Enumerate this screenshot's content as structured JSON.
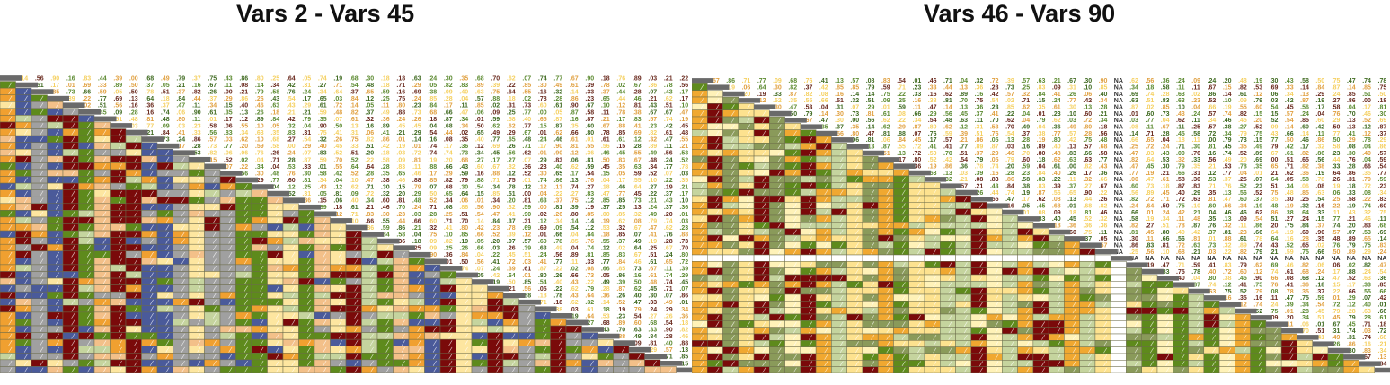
{
  "chart_data": [
    {
      "type": "heatmap",
      "title": "Vars 2 - Vars 45",
      "layout": "lower-triangle-colored-cells-upper-triangle-coefficients",
      "var_range": [
        2,
        45
      ],
      "n_vars": 44,
      "value_range": [
        -1,
        1
      ],
      "missing_label": "",
      "legend": "none",
      "grid": true,
      "cell_colors": [
        "#7a0a0a",
        "#f0a030",
        "#f3c089",
        "#fde6a0",
        "#a0a0a0",
        "#c5d49e",
        "#5e8a1c",
        "#4a5a9a"
      ],
      "number_colors": [
        "#e0a040",
        "#f5d060",
        "#5c8a30",
        "#3f6a20",
        "#6a2a1e"
      ],
      "seed": 7
    },
    {
      "type": "heatmap",
      "title": "Vars 46 - Vars 90",
      "layout": "lower-triangle-colored-cells-upper-triangle-coefficients",
      "var_range": [
        46,
        90
      ],
      "n_vars": 45,
      "value_range": [
        -1,
        1
      ],
      "missing_label": "NA",
      "missing_var_index": 27,
      "legend": "none",
      "grid": true,
      "cell_colors": [
        "#7a0a0a",
        "#f0a830",
        "#fde28f",
        "#fff2b8",
        "#c5d49e",
        "#8a9a5a",
        "#5e8a1c"
      ],
      "number_colors": [
        "#e0a040",
        "#f5d060",
        "#5c8a30",
        "#3f6a20",
        "#6a2a1e"
      ],
      "seed": 19
    }
  ]
}
